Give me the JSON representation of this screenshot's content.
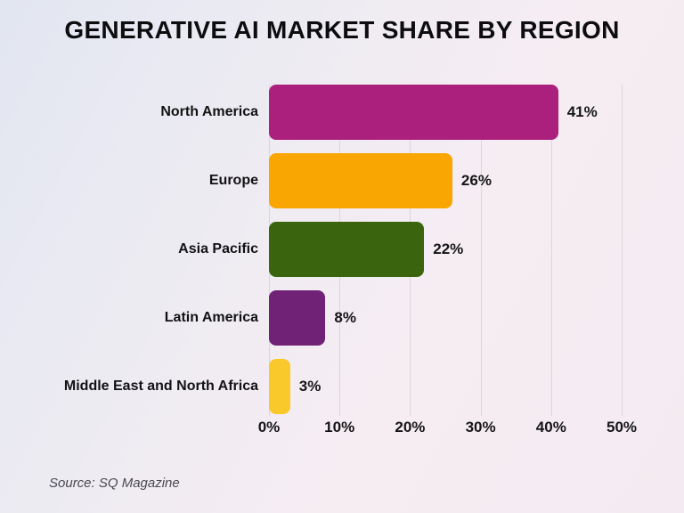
{
  "title": "GENERATIVE AI MARKET SHARE BY REGION",
  "source": "Source: SQ Magazine",
  "colors": {
    "background_top_left": "#e2e6f1",
    "background_bottom_right": "#f6edf3",
    "gridline": "#d9d5df",
    "text": "#0d0d0f"
  },
  "chart_data": {
    "type": "bar",
    "orientation": "horizontal",
    "title": "GENERATIVE AI MARKET SHARE BY REGION",
    "categories": [
      "North America",
      "Europe",
      "Asia Pacific",
      "Latin America",
      "Middle East and North Africa"
    ],
    "values": [
      41,
      26,
      22,
      8,
      3
    ],
    "value_labels": [
      "41%",
      "26%",
      "22%",
      "8%",
      "3%"
    ],
    "bar_colors": [
      "#ab1f7d",
      "#f9a603",
      "#3a650e",
      "#702277",
      "#f9c92c"
    ],
    "x_ticks": [
      "0%",
      "10%",
      "20%",
      "30%",
      "40%",
      "50%"
    ],
    "x_tick_values": [
      0,
      10,
      20,
      30,
      40,
      50
    ],
    "xlim": [
      0,
      50
    ],
    "xlabel": "",
    "ylabel": "",
    "grid": "vertical",
    "legend": "none",
    "source": "Source: SQ Magazine"
  }
}
